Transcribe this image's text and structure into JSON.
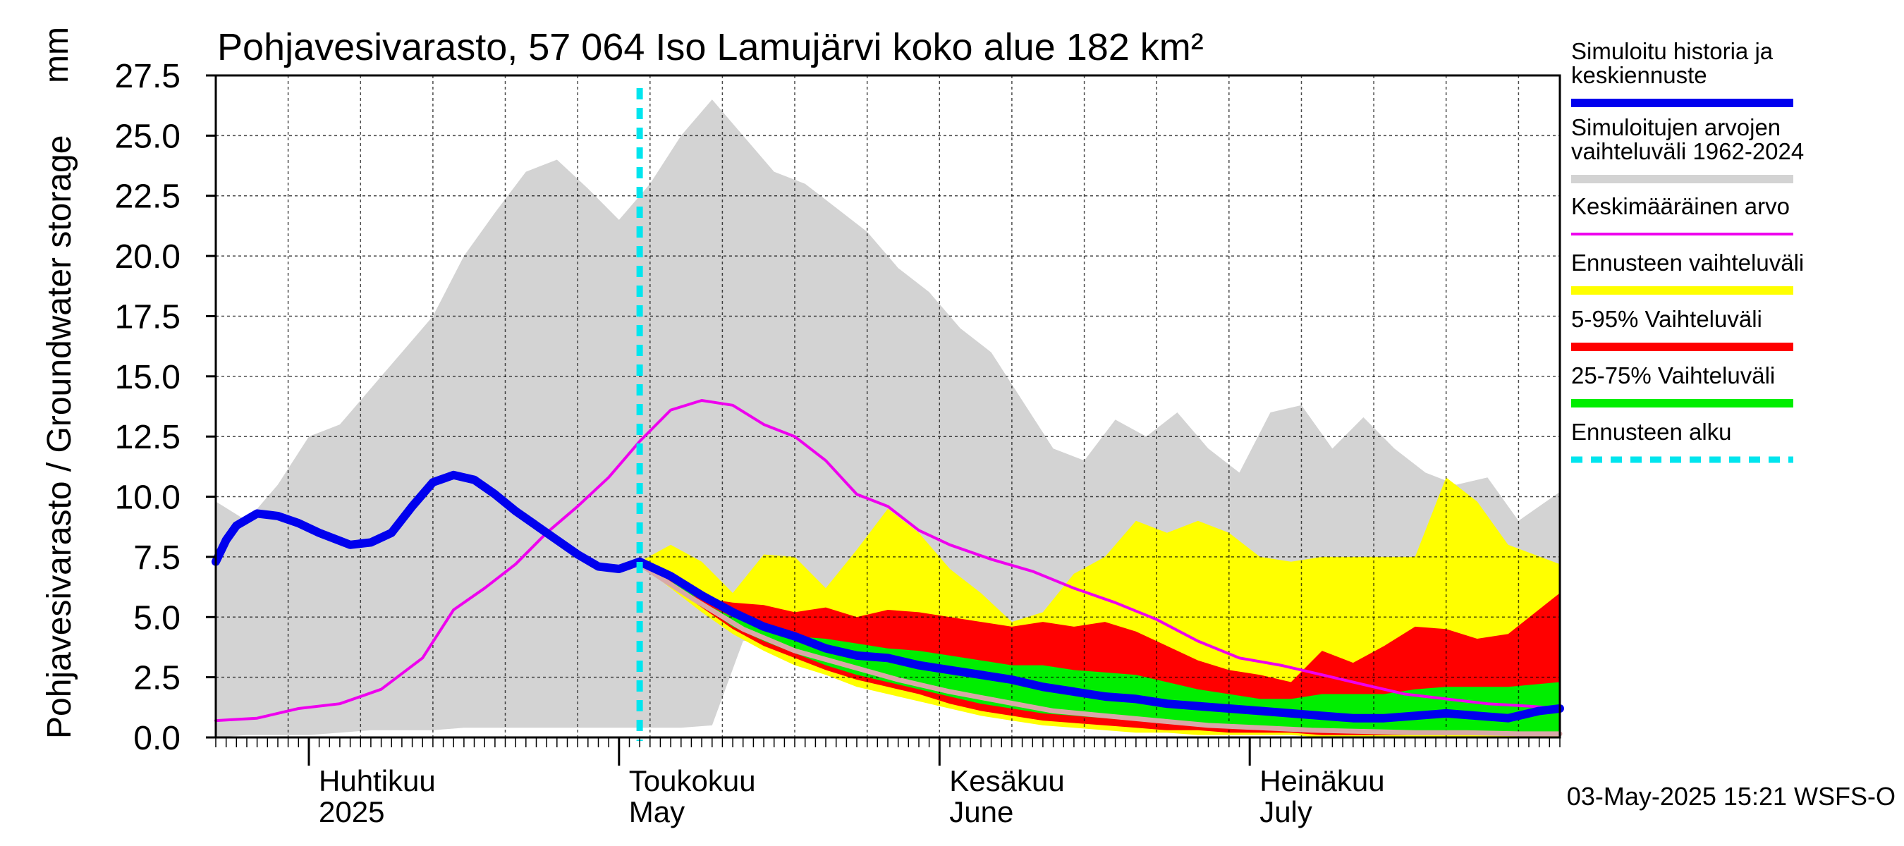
{
  "chart_data": {
    "type": "area",
    "title": "Pohjavesivarasto, 57 064 Iso Lamujärvi koko alue 182 km²",
    "ylabel": "Pohjavesivarasto / Groundwater storage",
    "yunit": "mm",
    "ylim": [
      0,
      27.5
    ],
    "yticks": [
      "0.0",
      "2.5",
      "5.0",
      "7.5",
      "10.0",
      "12.5",
      "15.0",
      "17.5",
      "20.0",
      "22.5",
      "25.0",
      "27.5"
    ],
    "xlim": [
      "2025-03-23",
      "2025-07-31"
    ],
    "months": [
      {
        "fi": "Huhtikuu",
        "en": "2025",
        "start": "2025-04-01"
      },
      {
        "fi": "Toukokuu",
        "en": "May",
        "start": "2025-05-01"
      },
      {
        "fi": "Kesäkuu",
        "en": "June",
        "start": "2025-06-01"
      },
      {
        "fi": "Heinäkuu",
        "en": "July",
        "start": "2025-07-01"
      }
    ],
    "grid": true,
    "legend_position": "right",
    "forecast_start": "2025-05-03",
    "footer": "03-May-2025 15:21 WSFS-O",
    "colors": {
      "history_range": "#d3d3d3",
      "forecast_range": "#ffff00",
      "p5_95": "#ff0000",
      "p25_75": "#00ee00",
      "simulated": "#0000ee",
      "mean": "#ee00ee",
      "median": "#d9a8a8",
      "forecast_line": "#00e5ee"
    },
    "legend": [
      {
        "key": "simulated",
        "label": "Simuloitu historia ja keskiennuste",
        "lines": [
          "Simuloitu historia ja",
          "keskiennuste"
        ]
      },
      {
        "key": "history_range",
        "label": "Simuloitujen arvojen vaihteluväli 1962-2024",
        "lines": [
          "Simuloitujen arvojen",
          "vaihteluväli 1962-2024"
        ]
      },
      {
        "key": "mean",
        "label": "Keskimääräinen arvo",
        "lines": [
          "Keskimääräinen arvo"
        ]
      },
      {
        "key": "forecast_range",
        "label": "Ennusteen vaihteluväli",
        "lines": [
          "Ennusteen vaihteluväli"
        ]
      },
      {
        "key": "p5_95",
        "label": "5-95% Vaihteluväli",
        "lines": [
          "5-95% Vaihteluväli"
        ]
      },
      {
        "key": "p25_75",
        "label": "25-75% Vaihteluväli",
        "lines": [
          "25-75% Vaihteluväli"
        ]
      },
      {
        "key": "forecast_line",
        "label": "Ennusteen alku",
        "lines": [
          "Ennusteen alku"
        ]
      }
    ],
    "series": {
      "history_range": {
        "x": [
          "2025-03-23",
          "2025-03-26",
          "2025-03-29",
          "2025-04-01",
          "2025-04-04",
          "2025-04-07",
          "2025-04-10",
          "2025-04-13",
          "2025-04-16",
          "2025-04-19",
          "2025-04-22",
          "2025-04-25",
          "2025-04-28",
          "2025-05-01",
          "2025-05-04",
          "2025-05-07",
          "2025-05-10",
          "2025-05-13",
          "2025-05-16",
          "2025-05-19",
          "2025-05-22",
          "2025-05-25",
          "2025-05-28",
          "2025-05-31",
          "2025-06-03",
          "2025-06-06",
          "2025-06-09",
          "2025-06-12",
          "2025-06-15",
          "2025-06-18",
          "2025-06-21",
          "2025-06-24",
          "2025-06-27",
          "2025-06-30",
          "2025-07-03",
          "2025-07-06",
          "2025-07-09",
          "2025-07-12",
          "2025-07-15",
          "2025-07-18",
          "2025-07-21",
          "2025-07-24",
          "2025-07-27",
          "2025-07-31"
        ],
        "low": [
          0.0,
          0.1,
          0.1,
          0.1,
          0.2,
          0.3,
          0.3,
          0.3,
          0.4,
          0.4,
          0.4,
          0.4,
          0.4,
          0.4,
          0.4,
          0.4,
          0.5,
          4.0,
          4.2,
          4.0,
          3.8,
          3.2,
          2.8,
          2.3,
          1.6,
          1.2,
          1.0,
          0.9,
          0.8,
          0.6,
          0.5,
          0.4,
          0.4,
          0.3,
          0.3,
          0.2,
          0.2,
          0.2,
          0.1,
          0.1,
          0.1,
          0.1,
          0.1,
          0.1
        ],
        "high": [
          9.8,
          9.0,
          10.5,
          12.5,
          13.0,
          14.5,
          16.0,
          17.5,
          20.0,
          21.8,
          23.5,
          24.0,
          22.8,
          21.5,
          23.0,
          25.0,
          26.5,
          25.0,
          23.5,
          23.0,
          22.0,
          21.0,
          19.5,
          18.5,
          17.0,
          16.0,
          14.0,
          12.0,
          11.5,
          13.2,
          12.5,
          13.5,
          12.0,
          11.0,
          13.5,
          13.8,
          12.0,
          13.3,
          12.0,
          11.0,
          10.5,
          10.8,
          9.0,
          10.2
        ]
      },
      "forecast_range": {
        "x": [
          "2025-05-03",
          "2025-05-06",
          "2025-05-09",
          "2025-05-12",
          "2025-05-15",
          "2025-05-18",
          "2025-05-21",
          "2025-05-24",
          "2025-05-27",
          "2025-05-30",
          "2025-06-02",
          "2025-06-05",
          "2025-06-08",
          "2025-06-11",
          "2025-06-14",
          "2025-06-17",
          "2025-06-20",
          "2025-06-23",
          "2025-06-26",
          "2025-06-29",
          "2025-07-02",
          "2025-07-05",
          "2025-07-08",
          "2025-07-11",
          "2025-07-14",
          "2025-07-17",
          "2025-07-20",
          "2025-07-23",
          "2025-07-26",
          "2025-07-31"
        ],
        "low": [
          7.2,
          6.2,
          5.2,
          4.3,
          3.6,
          3.0,
          2.6,
          2.1,
          1.8,
          1.5,
          1.2,
          0.9,
          0.7,
          0.5,
          0.4,
          0.3,
          0.2,
          0.2,
          0.1,
          0.1,
          0.1,
          0.1,
          0.0,
          0.0,
          0.0,
          0.0,
          0.0,
          0.0,
          0.0,
          0.0
        ],
        "high": [
          7.3,
          8.0,
          7.3,
          6.0,
          7.6,
          7.5,
          6.2,
          7.8,
          9.5,
          8.5,
          7.0,
          6.0,
          4.8,
          5.2,
          6.8,
          7.5,
          9.0,
          8.5,
          9.0,
          8.5,
          7.5,
          7.3,
          7.5,
          7.5,
          7.5,
          7.5,
          10.8,
          9.8,
          8.0,
          7.2
        ]
      },
      "p5_95": {
        "x": [
          "2025-05-03",
          "2025-05-06",
          "2025-05-09",
          "2025-05-12",
          "2025-05-15",
          "2025-05-18",
          "2025-05-21",
          "2025-05-24",
          "2025-05-27",
          "2025-05-30",
          "2025-06-02",
          "2025-06-05",
          "2025-06-08",
          "2025-06-11",
          "2025-06-14",
          "2025-06-17",
          "2025-06-20",
          "2025-06-23",
          "2025-06-26",
          "2025-06-29",
          "2025-07-02",
          "2025-07-05",
          "2025-07-08",
          "2025-07-11",
          "2025-07-14",
          "2025-07-17",
          "2025-07-20",
          "2025-07-23",
          "2025-07-26",
          "2025-07-31"
        ],
        "low": [
          7.2,
          6.3,
          5.4,
          4.5,
          3.8,
          3.3,
          2.8,
          2.4,
          2.1,
          1.8,
          1.4,
          1.1,
          0.9,
          0.7,
          0.6,
          0.5,
          0.4,
          0.3,
          0.3,
          0.2,
          0.2,
          0.2,
          0.1,
          0.1,
          0.1,
          0.1,
          0.1,
          0.1,
          0.1,
          0.1
        ],
        "high": [
          7.3,
          6.8,
          5.8,
          5.6,
          5.5,
          5.2,
          5.4,
          5.0,
          5.3,
          5.2,
          5.0,
          4.8,
          4.6,
          4.8,
          4.6,
          4.8,
          4.4,
          3.8,
          3.2,
          2.8,
          2.6,
          2.3,
          3.6,
          3.1,
          3.8,
          4.6,
          4.5,
          4.1,
          4.3,
          6.0
        ]
      },
      "p25_75": {
        "x": [
          "2025-05-03",
          "2025-05-06",
          "2025-05-09",
          "2025-05-12",
          "2025-05-15",
          "2025-05-18",
          "2025-05-21",
          "2025-05-24",
          "2025-05-27",
          "2025-05-30",
          "2025-06-02",
          "2025-06-05",
          "2025-06-08",
          "2025-06-11",
          "2025-06-14",
          "2025-06-17",
          "2025-06-20",
          "2025-06-23",
          "2025-06-26",
          "2025-06-29",
          "2025-07-02",
          "2025-07-05",
          "2025-07-08",
          "2025-07-11",
          "2025-07-14",
          "2025-07-17",
          "2025-07-20",
          "2025-07-23",
          "2025-07-26",
          "2025-07-31"
        ],
        "low": [
          7.2,
          6.5,
          5.5,
          4.6,
          4.0,
          3.5,
          3.0,
          2.6,
          2.3,
          2.0,
          1.7,
          1.4,
          1.2,
          1.0,
          0.9,
          0.8,
          0.7,
          0.6,
          0.5,
          0.4,
          0.4,
          0.3,
          0.3,
          0.3,
          0.3,
          0.2,
          0.2,
          0.2,
          0.2,
          0.2
        ],
        "high": [
          7.3,
          6.7,
          5.6,
          5.0,
          4.5,
          4.2,
          4.1,
          3.9,
          3.7,
          3.6,
          3.4,
          3.2,
          3.0,
          3.0,
          2.8,
          2.7,
          2.6,
          2.3,
          2.0,
          1.8,
          1.6,
          1.6,
          1.8,
          1.8,
          1.8,
          2.0,
          2.1,
          2.1,
          2.1,
          2.3
        ]
      },
      "median": {
        "x": [
          "2025-05-03",
          "2025-05-08",
          "2025-05-13",
          "2025-05-18",
          "2025-05-23",
          "2025-05-28",
          "2025-06-02",
          "2025-06-07",
          "2025-06-12",
          "2025-06-17",
          "2025-06-22",
          "2025-06-27",
          "2025-07-02",
          "2025-07-07",
          "2025-07-12",
          "2025-07-17",
          "2025-07-22",
          "2025-07-27",
          "2025-07-31"
        ],
        "values": [
          7.2,
          5.8,
          4.5,
          3.6,
          3.0,
          2.4,
          1.9,
          1.5,
          1.1,
          0.9,
          0.7,
          0.5,
          0.4,
          0.3,
          0.25,
          0.2,
          0.2,
          0.15,
          0.15
        ]
      },
      "simulated": {
        "x": [
          "2025-03-23",
          "2025-03-24",
          "2025-03-25",
          "2025-03-27",
          "2025-03-29",
          "2025-03-31",
          "2025-04-02",
          "2025-04-05",
          "2025-04-07",
          "2025-04-09",
          "2025-04-11",
          "2025-04-13",
          "2025-04-15",
          "2025-04-17",
          "2025-04-19",
          "2025-04-21",
          "2025-04-23",
          "2025-04-25",
          "2025-04-27",
          "2025-04-29",
          "2025-05-01",
          "2025-05-03",
          "2025-05-06",
          "2025-05-09",
          "2025-05-12",
          "2025-05-15",
          "2025-05-18",
          "2025-05-21",
          "2025-05-24",
          "2025-05-27",
          "2025-05-30",
          "2025-06-02",
          "2025-06-05",
          "2025-06-08",
          "2025-06-11",
          "2025-06-14",
          "2025-06-17",
          "2025-06-20",
          "2025-06-23",
          "2025-06-26",
          "2025-06-29",
          "2025-07-02",
          "2025-07-05",
          "2025-07-08",
          "2025-07-11",
          "2025-07-14",
          "2025-07-17",
          "2025-07-20",
          "2025-07-23",
          "2025-07-26",
          "2025-07-29",
          "2025-07-31"
        ],
        "values": [
          7.3,
          8.2,
          8.8,
          9.3,
          9.2,
          8.9,
          8.5,
          8.0,
          8.1,
          8.5,
          9.6,
          10.6,
          10.9,
          10.7,
          10.1,
          9.4,
          8.8,
          8.2,
          7.6,
          7.1,
          7.0,
          7.3,
          6.7,
          5.9,
          5.2,
          4.6,
          4.2,
          3.7,
          3.4,
          3.3,
          3.0,
          2.8,
          2.6,
          2.4,
          2.1,
          1.9,
          1.7,
          1.6,
          1.4,
          1.3,
          1.2,
          1.1,
          1.0,
          0.9,
          0.8,
          0.8,
          0.9,
          1.0,
          0.9,
          0.8,
          1.1,
          1.2
        ]
      },
      "mean": {
        "x": [
          "2025-03-23",
          "2025-03-27",
          "2025-03-31",
          "2025-04-04",
          "2025-04-08",
          "2025-04-12",
          "2025-04-15",
          "2025-04-18",
          "2025-04-21",
          "2025-04-24",
          "2025-04-27",
          "2025-04-30",
          "2025-05-03",
          "2025-05-06",
          "2025-05-09",
          "2025-05-12",
          "2025-05-15",
          "2025-05-18",
          "2025-05-21",
          "2025-05-24",
          "2025-05-27",
          "2025-05-30",
          "2025-06-02",
          "2025-06-06",
          "2025-06-10",
          "2025-06-14",
          "2025-06-18",
          "2025-06-22",
          "2025-06-26",
          "2025-06-30",
          "2025-07-04",
          "2025-07-08",
          "2025-07-12",
          "2025-07-16",
          "2025-07-20",
          "2025-07-24",
          "2025-07-28",
          "2025-07-31"
        ],
        "values": [
          0.7,
          0.8,
          1.2,
          1.4,
          2.0,
          3.3,
          5.3,
          6.2,
          7.2,
          8.5,
          9.6,
          10.8,
          12.3,
          13.6,
          14.0,
          13.8,
          13.0,
          12.5,
          11.5,
          10.1,
          9.6,
          8.6,
          8.0,
          7.4,
          6.9,
          6.2,
          5.6,
          4.9,
          4.0,
          3.3,
          3.0,
          2.6,
          2.2,
          1.8,
          1.6,
          1.4,
          1.3,
          1.2
        ]
      }
    }
  }
}
